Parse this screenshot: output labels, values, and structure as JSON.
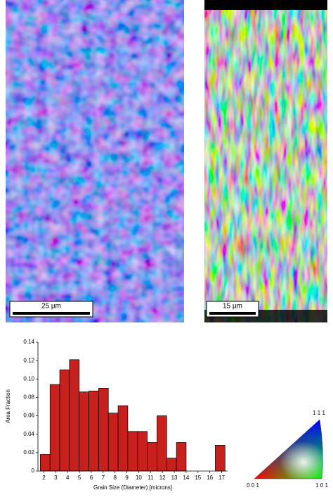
{
  "maps": [
    {
      "scale_bar": "25 µm"
    },
    {
      "scale_bar": "15 µm"
    }
  ],
  "chart_data": {
    "type": "histogram",
    "xlabel": "Grain Size (Diameter) [microns]",
    "ylabel": "Area Fraction",
    "bins": [
      1.7,
      2.52,
      3.34,
      4.16,
      4.98,
      5.8,
      6.62,
      7.44,
      8.26,
      9.08,
      9.9,
      10.72,
      11.54,
      12.36,
      13.18,
      14.0,
      14.82,
      15.64,
      16.46,
      17.28
    ],
    "values": [
      0.018,
      0.094,
      0.11,
      0.121,
      0.086,
      0.087,
      0.09,
      0.063,
      0.071,
      0.043,
      0.043,
      0.031,
      0.06,
      0.014,
      0.031,
      0,
      0,
      0,
      0.028
    ],
    "color": "#c8201c",
    "xlim": [
      1.5,
      17.5
    ],
    "xticks": [
      2,
      3,
      4,
      5,
      6,
      7,
      8,
      9,
      10,
      11,
      12,
      13,
      14,
      15,
      16,
      17
    ],
    "ylim": [
      0,
      0.14
    ],
    "yticks": [
      0,
      0.02,
      0.04,
      0.06,
      0.08,
      {
        "value": 0.1,
        "label": "0.10"
      },
      0.12,
      0.14
    ]
  },
  "ipf": {
    "corners": [
      "1 1 1",
      "0 0 1",
      "1 0 1"
    ]
  }
}
